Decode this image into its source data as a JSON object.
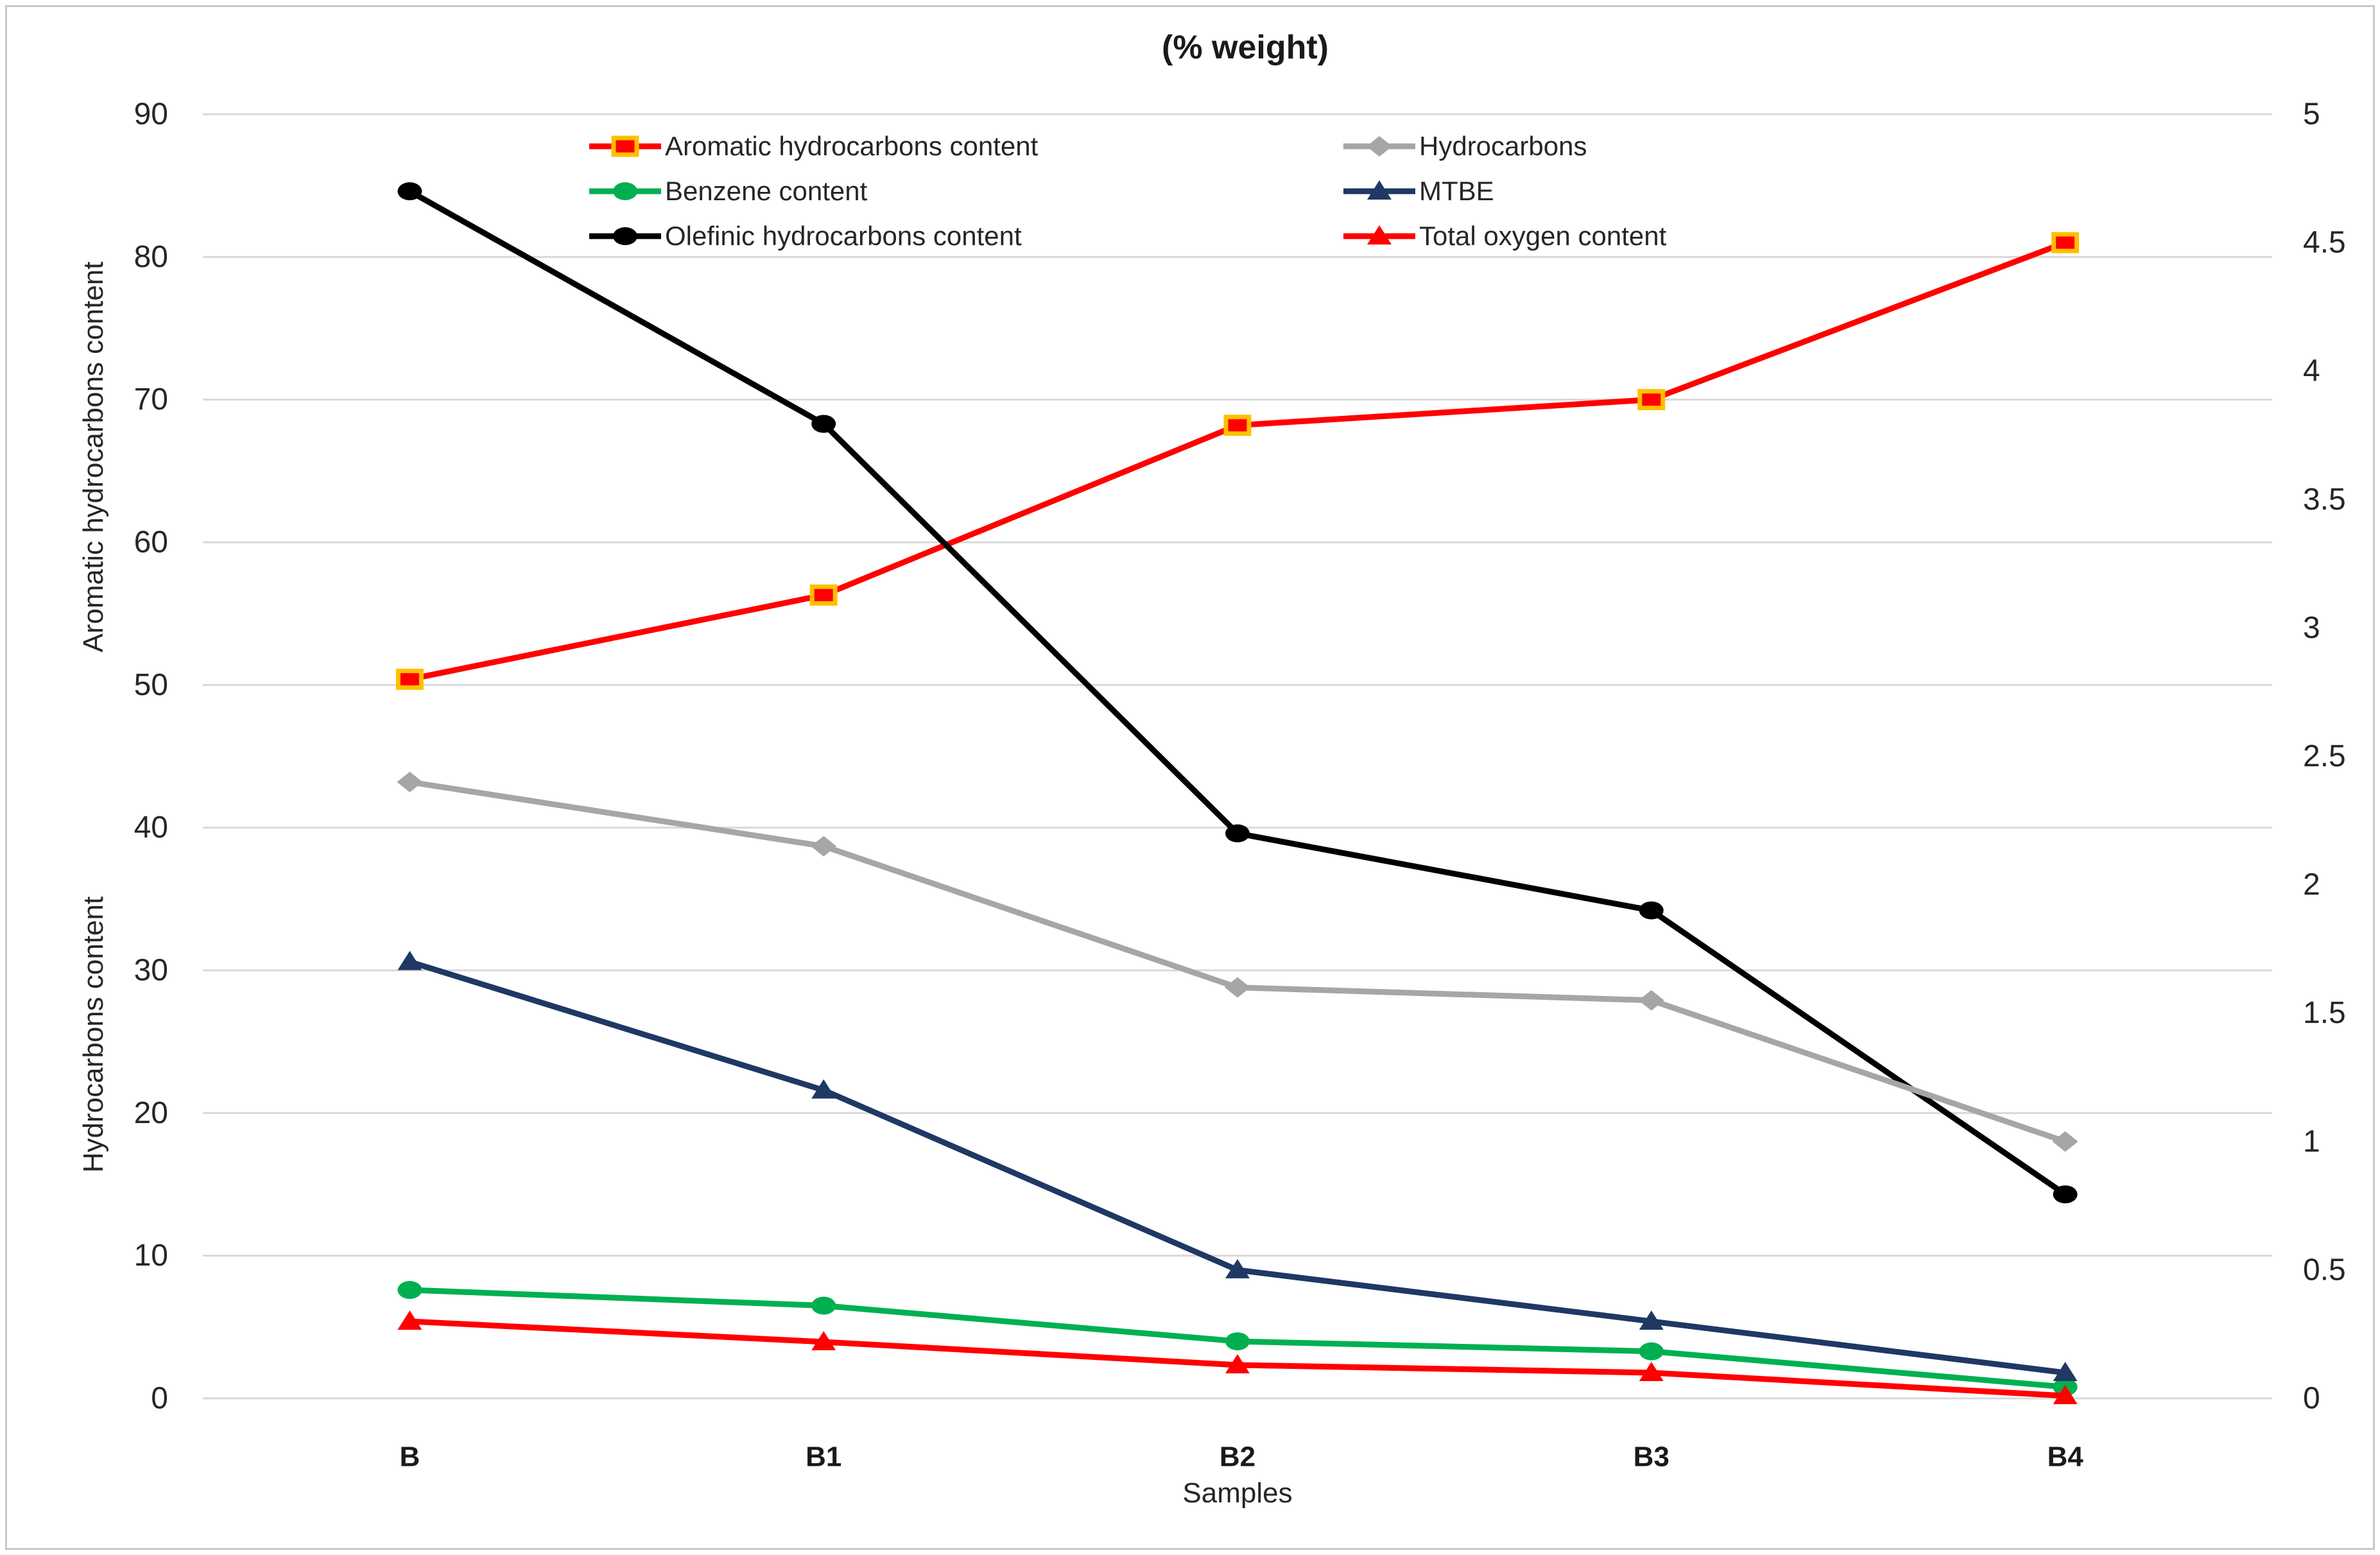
{
  "chart_data": {
    "type": "line",
    "title": "(% weight)",
    "xlabel": "Samples",
    "ylabel_left_top": "Aromatic hydrocarbons content",
    "ylabel_left_bottom": "Hydrocarbons content",
    "categories": [
      "B",
      "B1",
      "B2",
      "B3",
      "B4"
    ],
    "grid": true,
    "legend_position": "top",
    "left_axis": {
      "min": 0,
      "max": 90,
      "ticks": [
        0,
        10,
        20,
        30,
        40,
        50,
        60,
        70,
        80,
        90
      ]
    },
    "right_axis": {
      "min": 0,
      "max": 5,
      "tick_labels": [
        "0",
        "0.5",
        "1",
        "1.5",
        "2",
        "2.5",
        "3",
        "3.5",
        "4",
        "4.5",
        "5"
      ]
    },
    "colors": {
      "grid": "#D9D9D9",
      "tick_text": "#262626",
      "red": "#FF0000",
      "square_border": "#FFC000",
      "green": "#00B050",
      "black": "#000000",
      "gray": "#A6A6A6",
      "navy": "#1F3864"
    },
    "series": [
      {
        "name": "Aromatic hydrocarbons content",
        "axis": "left",
        "color": "#FF0000",
        "marker": "square",
        "marker_border": "#FFC000",
        "legend_col": 0,
        "legend_row": 0,
        "values": [
          50.4,
          56.3,
          68.2,
          70,
          81
        ]
      },
      {
        "name": "Benzene content",
        "axis": "left",
        "color": "#00B050",
        "marker": "circle",
        "legend_col": 0,
        "legend_row": 1,
        "values": [
          7.6,
          6.5,
          4.0,
          3.3,
          0.8
        ]
      },
      {
        "name": "Olefinic hydrocarbons content",
        "axis": "left",
        "color": "#000000",
        "marker": "circle",
        "legend_col": 0,
        "legend_row": 2,
        "values": [
          84.6,
          68.3,
          39.6,
          34.2,
          14.3
        ]
      },
      {
        "name": "Hydrocarbons",
        "axis": "right",
        "color": "#A6A6A6",
        "marker": "diamond",
        "legend_col": 1,
        "legend_row": 0,
        "values": [
          2.4,
          2.15,
          1.6,
          1.55,
          1.0
        ]
      },
      {
        "name": "MTBE",
        "axis": "right",
        "color": "#1F3864",
        "marker": "triangle",
        "legend_col": 1,
        "legend_row": 1,
        "values": [
          1.7,
          1.2,
          0.5,
          0.3,
          0.1
        ]
      },
      {
        "name": "Total oxygen content",
        "axis": "right",
        "color": "#FF0000",
        "marker": "triangle",
        "legend_col": 1,
        "legend_row": 2,
        "values": [
          0.3,
          0.22,
          0.13,
          0.1,
          0.01
        ]
      }
    ]
  }
}
